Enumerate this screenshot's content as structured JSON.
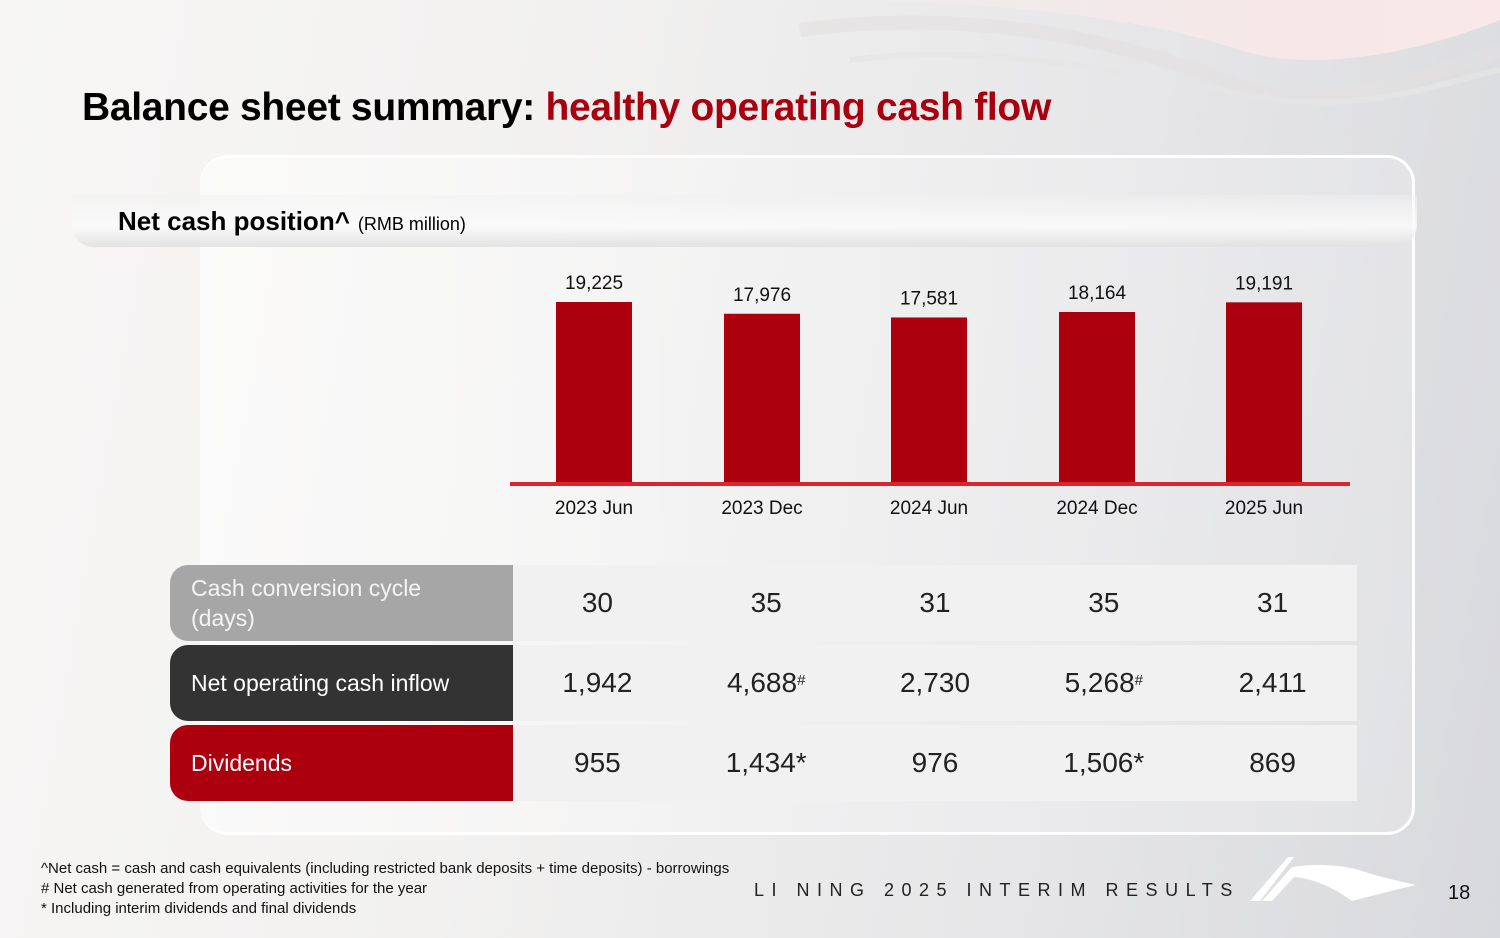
{
  "title": {
    "prefix": "Balance sheet summary: ",
    "accent": "healthy operating cash flow"
  },
  "colors": {
    "accent": "#a8000f",
    "bar": "#ad000f",
    "axis": "#d9252f",
    "row_ccc": "#a6a6a6",
    "row_noci": "#333333",
    "row_div": "#ad000f"
  },
  "chart_data": {
    "type": "bar",
    "title": "Net cash position^",
    "unit": "(RMB million)",
    "categories": [
      "2023 Jun",
      "2023 Dec",
      "2024 Jun",
      "2024 Dec",
      "2025 Jun"
    ],
    "values": [
      19225,
      17976,
      17581,
      18164,
      19191
    ],
    "value_labels": [
      "19,225",
      "17,976",
      "17,581",
      "18,164",
      "19,191"
    ],
    "xlabel": "",
    "ylabel": "",
    "ylim": [
      0,
      19500
    ],
    "grid": false
  },
  "table": {
    "rows": [
      {
        "label": "Cash conversion cycle (days)",
        "values": [
          "30",
          "35",
          "31",
          "35",
          "31"
        ],
        "marks": [
          "",
          "",
          "",
          "",
          ""
        ]
      },
      {
        "label": "Net operating cash inflow",
        "values": [
          "1,942",
          "4,688",
          "2,730",
          "5,268",
          "2,411"
        ],
        "marks": [
          "",
          "#",
          "",
          "#",
          ""
        ]
      },
      {
        "label": "Dividends",
        "values": [
          "955",
          "1,434*",
          "976",
          "1,506*",
          "869"
        ],
        "marks": [
          "",
          "",
          "",
          "",
          ""
        ]
      }
    ]
  },
  "footnotes": [
    "^Net cash = cash and cash equivalents (including restricted bank deposits + time deposits)  - borrowings",
    "# Net cash generated from operating activities for the year",
    "* Including interim dividends and final dividends"
  ],
  "footer": {
    "brand": "LI NING 2025 INTERIM RESULTS",
    "logo_icon": "li-ning-swoosh-logo",
    "page_number": "18"
  }
}
